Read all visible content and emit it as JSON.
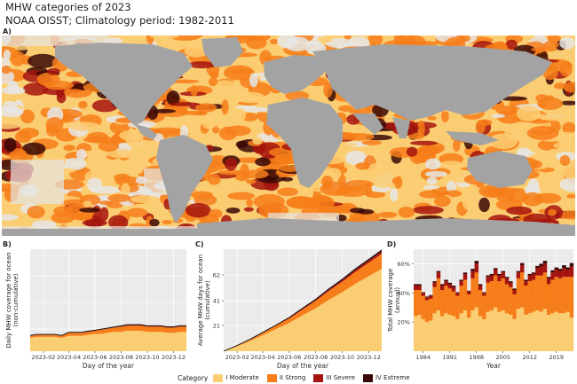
{
  "header": {
    "title": "MHW categories of 2023",
    "subtitle": "NOAA OISST; Climatology period: 1982-2011"
  },
  "colors": {
    "moderate": "#fbcd72",
    "strong": "#f67e1a",
    "severe": "#a5140e",
    "extreme": "#3a0806",
    "land": "#a3a3a3",
    "panel_bg": "#ebebeb",
    "grid": "#ffffff"
  },
  "legend": {
    "title": "Category",
    "items": [
      {
        "label": "I Moderate",
        "color": "#fbcd72"
      },
      {
        "label": "II Strong",
        "color": "#f67e1a"
      },
      {
        "label": "III Severe",
        "color": "#a5140e"
      },
      {
        "label": "IV Extreme",
        "color": "#3a0806"
      }
    ]
  },
  "chart_data": [
    {
      "panel": "A)",
      "type": "heatmap",
      "title": "MHW categories of 2023",
      "subtitle": "NOAA OISST; Climatology period: 1982-2011",
      "categories": [
        "I Moderate",
        "II Strong",
        "III Severe",
        "IV Extreme"
      ],
      "description_land_color": "#a3a3a3"
    },
    {
      "panel": "B)",
      "type": "area",
      "xlabel": "Day of the year",
      "ylabel": "Daily MHW coverage for ocean (non-cumulative)",
      "x_ticks": [
        "2023-02",
        "2023-04",
        "2023-06",
        "2023-08",
        "2023-10",
        "2023-12"
      ],
      "y_ticks": [],
      "x": [
        "2023-01-01",
        "2023-01-15",
        "2023-02-01",
        "2023-02-15",
        "2023-03-01",
        "2023-03-15",
        "2023-04-01",
        "2023-04-15",
        "2023-05-01",
        "2023-05-15",
        "2023-06-01",
        "2023-06-15",
        "2023-07-01",
        "2023-07-15",
        "2023-08-01",
        "2023-08-15",
        "2023-09-01",
        "2023-09-15",
        "2023-10-01",
        "2023-10-15",
        "2023-11-01",
        "2023-11-15",
        "2023-12-01",
        "2023-12-15",
        "2023-12-31"
      ],
      "ylim": [
        0,
        100
      ],
      "series": [
        {
          "name": "I Moderate",
          "values": [
            13,
            14,
            14,
            14,
            14,
            13,
            15,
            15,
            15,
            16,
            17,
            17,
            18,
            19,
            19,
            20,
            20,
            20,
            19,
            19,
            19,
            18,
            18,
            19,
            19
          ]
        },
        {
          "name": "II Strong",
          "values": [
            2,
            2,
            2,
            2,
            2,
            2,
            3,
            3,
            3,
            3,
            3,
            4,
            4,
            4,
            5,
            5,
            5,
            5,
            5,
            5,
            5,
            5,
            5,
            5,
            5
          ]
        },
        {
          "name": "III Severe",
          "values": [
            0.3,
            0.3,
            0.3,
            0.3,
            0.3,
            0.3,
            0.4,
            0.4,
            0.4,
            0.5,
            0.5,
            0.5,
            0.6,
            0.6,
            0.7,
            0.8,
            0.8,
            0.8,
            0.8,
            0.8,
            0.8,
            0.8,
            0.8,
            0.8,
            0.8
          ]
        },
        {
          "name": "IV Extreme",
          "values": [
            0.1,
            0.1,
            0.1,
            0.1,
            0.1,
            0.1,
            0.1,
            0.1,
            0.1,
            0.1,
            0.1,
            0.1,
            0.1,
            0.1,
            0.1,
            0.2,
            0.2,
            0.2,
            0.2,
            0.2,
            0.2,
            0.2,
            0.2,
            0.2,
            0.2
          ]
        }
      ]
    },
    {
      "panel": "C)",
      "type": "area",
      "xlabel": "Day of the year",
      "ylabel": "Average MHW days for ocean (cumulative)",
      "x_ticks": [
        "2023-02",
        "2023-04",
        "2023-06",
        "2023-08",
        "2023-10",
        "2023-12"
      ],
      "y_ticks": [
        "21",
        "41",
        "62"
      ],
      "x": [
        "2023-01-01",
        "2023-02-01",
        "2023-03-01",
        "2023-04-01",
        "2023-05-01",
        "2023-06-01",
        "2023-07-01",
        "2023-08-01",
        "2023-09-01",
        "2023-10-01",
        "2023-11-01",
        "2023-12-01",
        "2023-12-31"
      ],
      "ylim": [
        0,
        83
      ],
      "series": [
        {
          "name": "I Moderate",
          "values": [
            0,
            4,
            8,
            13,
            18,
            23,
            29,
            35,
            42,
            48,
            55,
            61,
            67
          ]
        },
        {
          "name": "II Strong",
          "values": [
            0,
            0.6,
            1.2,
            1.9,
            2.7,
            3.6,
            4.7,
            5.9,
            7.2,
            8.5,
            9.8,
            11.0,
            12.3
          ]
        },
        {
          "name": "III Severe",
          "values": [
            0,
            0.1,
            0.2,
            0.3,
            0.4,
            0.6,
            0.8,
            1.0,
            1.2,
            1.4,
            1.7,
            1.9,
            2.1
          ]
        },
        {
          "name": "IV Extreme",
          "values": [
            0,
            0.0,
            0.05,
            0.1,
            0.15,
            0.2,
            0.3,
            0.4,
            0.5,
            0.6,
            0.7,
            0.8,
            0.9
          ]
        }
      ]
    },
    {
      "panel": "D)",
      "type": "bar",
      "xlabel": "Year",
      "ylabel": "Total MHW coverage (annual)",
      "x_ticks": [
        "1984",
        "1991",
        "1998",
        "2005",
        "2012",
        "2019"
      ],
      "y_ticks": [
        "20%",
        "40%",
        "60%"
      ],
      "ylim": [
        0,
        70
      ],
      "categories": [
        1982,
        1983,
        1984,
        1985,
        1986,
        1987,
        1988,
        1989,
        1990,
        1991,
        1992,
        1993,
        1994,
        1995,
        1996,
        1997,
        1998,
        1999,
        2000,
        2001,
        2002,
        2003,
        2004,
        2005,
        2006,
        2007,
        2008,
        2009,
        2010,
        2011,
        2012,
        2013,
        2014,
        2015,
        2016,
        2017,
        2018,
        2019,
        2020,
        2021,
        2022,
        2023
      ],
      "series": [
        {
          "name": "I Moderate",
          "values": [
            24,
            25,
            22,
            20,
            21,
            26,
            28,
            24,
            26,
            25,
            24,
            22,
            26,
            28,
            23,
            28,
            30,
            24,
            22,
            27,
            28,
            30,
            27,
            28,
            26,
            25,
            22,
            29,
            30,
            25,
            26,
            27,
            28,
            27,
            29,
            25,
            26,
            27,
            26,
            26,
            27,
            23
          ]
        },
        {
          "name": "II Strong",
          "values": [
            18,
            17,
            16,
            15,
            15,
            18,
            22,
            18,
            19,
            18,
            17,
            16,
            19,
            21,
            16,
            22,
            24,
            18,
            16,
            20,
            20,
            22,
            21,
            22,
            20,
            19,
            17,
            21,
            24,
            20,
            22,
            22,
            24,
            25,
            25,
            21,
            23,
            24,
            24,
            25,
            24,
            28
          ]
        },
        {
          "name": "III Severe",
          "values": [
            3,
            3,
            2,
            2,
            2,
            3,
            4,
            3,
            3,
            3,
            3,
            2,
            3,
            4,
            2,
            5,
            6,
            3,
            2,
            4,
            4,
            4,
            4,
            4,
            4,
            3,
            3,
            4,
            5,
            3,
            4,
            4,
            5,
            6,
            6,
            4,
            5,
            5,
            5,
            6,
            5,
            7
          ]
        },
        {
          "name": "IV Extreme",
          "values": [
            1,
            1,
            0.5,
            0.5,
            0.5,
            1,
            1,
            1,
            1,
            1,
            1,
            0.5,
            1,
            1,
            0.5,
            1.5,
            2,
            1,
            0.5,
            1,
            1,
            1,
            1,
            1,
            1,
            1,
            1,
            1,
            1.5,
            1,
            1,
            1,
            1.5,
            2,
            2,
            1,
            1.5,
            1.5,
            1.5,
            2,
            1.5,
            2.5
          ]
        }
      ]
    }
  ]
}
